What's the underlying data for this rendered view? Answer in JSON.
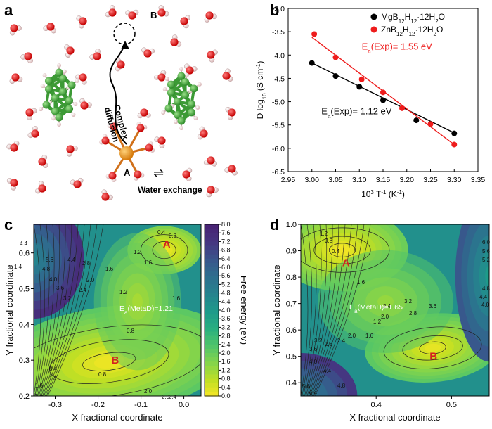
{
  "panels": {
    "a": {
      "label": "a",
      "site_a": "A",
      "site_b": "B",
      "path_label_line1": "Complex",
      "path_label_line2": "diffusion",
      "exchange_symbol": "⇌",
      "exchange_label": "Water exchange"
    },
    "b": {
      "label": "b"
    },
    "c": {
      "label": "c",
      "min_a": "A",
      "min_b": "B",
      "barrier_label": "Ea(MetaD)=1.21",
      "colorbar_label": "Free energy (eV)",
      "colorbar_ticks": [
        "8.0",
        "7.6",
        "7.2",
        "6.8",
        "6.4",
        "6.0",
        "5.6",
        "5.2",
        "4.8",
        "4.4",
        "4.0",
        "3.6",
        "3.2",
        "2.8",
        "2.4",
        "2.0",
        "1.6",
        "1.2",
        "0.8",
        "0.4",
        "0.0"
      ],
      "contour_labels": [
        "0.4",
        "0.8",
        "1.2",
        "1.6",
        "1.6",
        "1.2",
        "0.8",
        "2.8",
        "2.4",
        "2.0",
        "4.4",
        "5.6",
        "4.8",
        "4.0",
        "3.6",
        "3.2",
        "4.4",
        "1.4",
        "0.8",
        "0.4",
        "1.2",
        "1.6",
        "2.0",
        "2.4",
        "2.0",
        "1.6"
      ]
    },
    "d": {
      "label": "d",
      "min_a": "A",
      "min_b": "B",
      "barrier_label": "Ea(MetaD)=1.65",
      "contour_labels": [
        "1.2",
        "0.8",
        "0.4",
        "1.6",
        "2.4",
        "2.0",
        "3.2",
        "2.8",
        "3.6",
        "1.2",
        "1.6",
        "2.0",
        "2.4",
        "2.8",
        "3.2",
        "3.6",
        "4.0",
        "4.4",
        "4.8",
        "5.6",
        "6.4",
        "6.0",
        "5.6",
        "5.2",
        "4.8",
        "4.4",
        "4.0"
      ]
    }
  },
  "chart_data": [
    {
      "type": "scatter",
      "panel": "b",
      "xlabel": "10^3 T^-1 (K^-1)",
      "ylabel": "D log10 (S cm^-1)",
      "xlim": [
        2.95,
        3.35
      ],
      "ylim": [
        -6.5,
        -3.0
      ],
      "xticks": [
        "2.95",
        "3.00",
        "3.05",
        "3.10",
        "3.15",
        "3.20",
        "3.25",
        "3.30",
        "3.35"
      ],
      "yticks": [
        "-3.0",
        "-3.5",
        "-4.0",
        "-4.5",
        "-5.0",
        "-5.5",
        "-6.0",
        "-6.5"
      ],
      "legend_position": "top-right",
      "series": [
        {
          "name": "MgB12H12·12H2O",
          "color": "#000000",
          "x": [
            3.0,
            3.05,
            3.1,
            3.15,
            3.22,
            3.3
          ],
          "y": [
            -4.17,
            -4.45,
            -4.68,
            -4.97,
            -5.4,
            -5.68
          ],
          "fit": {
            "x": [
              3.0,
              3.3
            ],
            "y": [
              -4.17,
              -5.67
            ]
          },
          "annotation": "Ea(Exp)= 1.12 eV"
        },
        {
          "name": "ZnB12H12·12H2O",
          "color": "#ee1c1c",
          "x": [
            3.005,
            3.05,
            3.105,
            3.15,
            3.19,
            3.25,
            3.3
          ],
          "y": [
            -3.55,
            -4.05,
            -4.52,
            -4.8,
            -5.14,
            -5.48,
            -5.92
          ],
          "fit": {
            "x": [
              3.0,
              3.3
            ],
            "y": [
              -3.62,
              -5.92
            ]
          },
          "annotation": "Ea(Exp)= 1.55 eV"
        }
      ]
    },
    {
      "type": "heatmap",
      "panel": "c",
      "xlabel": "X fractional coordinate",
      "ylabel": "Y fractional coordinate",
      "xlim": [
        -0.35,
        0.04
      ],
      "ylim": [
        0.2,
        0.68
      ],
      "xticks": [
        "-0.3",
        "-0.2",
        "-0.1",
        "0.0"
      ],
      "yticks": [
        "0.2",
        "0.3",
        "0.4",
        "0.5",
        "0.6"
      ],
      "zlim": [
        0.0,
        8.0
      ],
      "minima": [
        {
          "label": "A",
          "x": -0.04,
          "y": 0.625
        },
        {
          "label": "B",
          "x": -0.16,
          "y": 0.3
        }
      ]
    },
    {
      "type": "heatmap",
      "panel": "d",
      "xlabel": "X fractional coordinate",
      "ylabel": "Y fractional coordinate",
      "xlim": [
        0.3,
        0.55
      ],
      "ylim": [
        0.35,
        1.0
      ],
      "xticks": [
        "0.4",
        "0.5"
      ],
      "yticks": [
        "0.4",
        "0.5",
        "0.6",
        "0.7",
        "0.8",
        "0.9",
        "1.0"
      ],
      "minima": [
        {
          "label": "A",
          "x": 0.36,
          "y": 0.855
        },
        {
          "label": "B",
          "x": 0.476,
          "y": 0.5
        }
      ]
    }
  ]
}
